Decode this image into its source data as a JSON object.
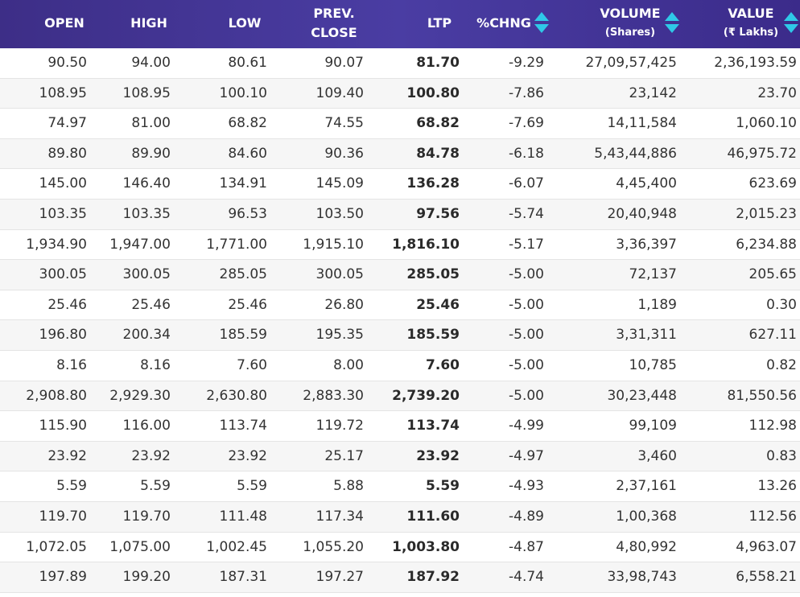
{
  "table": {
    "headers": {
      "open": "OPEN",
      "high": "HIGH",
      "low": "LOW",
      "prev_close_line1": "PREV.",
      "prev_close_line2": "CLOSE",
      "ltp": "LTP",
      "chng": "%CHNG",
      "volume_line1": "VOLUME",
      "volume_line2": "(Shares)",
      "value_line1": "VALUE",
      "value_line2": "(₹ Lakhs)"
    },
    "sort_icon": "sort-arrows-icon",
    "colors": {
      "header_bg": "#3d2e87",
      "sort_arrow": "#2fc8e8",
      "negative": "#c0262d"
    },
    "rows": [
      {
        "open": "90.50",
        "high": "94.00",
        "low": "80.61",
        "prev": "90.07",
        "ltp": "81.70",
        "chng": "-9.29",
        "volume": "27,09,57,425",
        "value": "2,36,193.59"
      },
      {
        "open": "108.95",
        "high": "108.95",
        "low": "100.10",
        "prev": "109.40",
        "ltp": "100.80",
        "chng": "-7.86",
        "volume": "23,142",
        "value": "23.70"
      },
      {
        "open": "74.97",
        "high": "81.00",
        "low": "68.82",
        "prev": "74.55",
        "ltp": "68.82",
        "chng": "-7.69",
        "volume": "14,11,584",
        "value": "1,060.10"
      },
      {
        "open": "89.80",
        "high": "89.90",
        "low": "84.60",
        "prev": "90.36",
        "ltp": "84.78",
        "chng": "-6.18",
        "volume": "5,43,44,886",
        "value": "46,975.72"
      },
      {
        "open": "145.00",
        "high": "146.40",
        "low": "134.91",
        "prev": "145.09",
        "ltp": "136.28",
        "chng": "-6.07",
        "volume": "4,45,400",
        "value": "623.69"
      },
      {
        "open": "103.35",
        "high": "103.35",
        "low": "96.53",
        "prev": "103.50",
        "ltp": "97.56",
        "chng": "-5.74",
        "volume": "20,40,948",
        "value": "2,015.23"
      },
      {
        "open": "1,934.90",
        "high": "1,947.00",
        "low": "1,771.00",
        "prev": "1,915.10",
        "ltp": "1,816.10",
        "chng": "-5.17",
        "volume": "3,36,397",
        "value": "6,234.88"
      },
      {
        "open": "300.05",
        "high": "300.05",
        "low": "285.05",
        "prev": "300.05",
        "ltp": "285.05",
        "chng": "-5.00",
        "volume": "72,137",
        "value": "205.65"
      },
      {
        "open": "25.46",
        "high": "25.46",
        "low": "25.46",
        "prev": "26.80",
        "ltp": "25.46",
        "chng": "-5.00",
        "volume": "1,189",
        "value": "0.30"
      },
      {
        "open": "196.80",
        "high": "200.34",
        "low": "185.59",
        "prev": "195.35",
        "ltp": "185.59",
        "chng": "-5.00",
        "volume": "3,31,311",
        "value": "627.11"
      },
      {
        "open": "8.16",
        "high": "8.16",
        "low": "7.60",
        "prev": "8.00",
        "ltp": "7.60",
        "chng": "-5.00",
        "volume": "10,785",
        "value": "0.82"
      },
      {
        "open": "2,908.80",
        "high": "2,929.30",
        "low": "2,630.80",
        "prev": "2,883.30",
        "ltp": "2,739.20",
        "chng": "-5.00",
        "volume": "30,23,448",
        "value": "81,550.56"
      },
      {
        "open": "115.90",
        "high": "116.00",
        "low": "113.74",
        "prev": "119.72",
        "ltp": "113.74",
        "chng": "-4.99",
        "volume": "99,109",
        "value": "112.98"
      },
      {
        "open": "23.92",
        "high": "23.92",
        "low": "23.92",
        "prev": "25.17",
        "ltp": "23.92",
        "chng": "-4.97",
        "volume": "3,460",
        "value": "0.83"
      },
      {
        "open": "5.59",
        "high": "5.59",
        "low": "5.59",
        "prev": "5.88",
        "ltp": "5.59",
        "chng": "-4.93",
        "volume": "2,37,161",
        "value": "13.26"
      },
      {
        "open": "119.70",
        "high": "119.70",
        "low": "111.48",
        "prev": "117.34",
        "ltp": "111.60",
        "chng": "-4.89",
        "volume": "1,00,368",
        "value": "112.56"
      },
      {
        "open": "1,072.05",
        "high": "1,075.00",
        "low": "1,002.45",
        "prev": "1,055.20",
        "ltp": "1,003.80",
        "chng": "-4.87",
        "volume": "4,80,992",
        "value": "4,963.07"
      },
      {
        "open": "197.89",
        "high": "199.20",
        "low": "187.31",
        "prev": "197.27",
        "ltp": "187.92",
        "chng": "-4.74",
        "volume": "33,98,743",
        "value": "6,558.21"
      }
    ]
  }
}
